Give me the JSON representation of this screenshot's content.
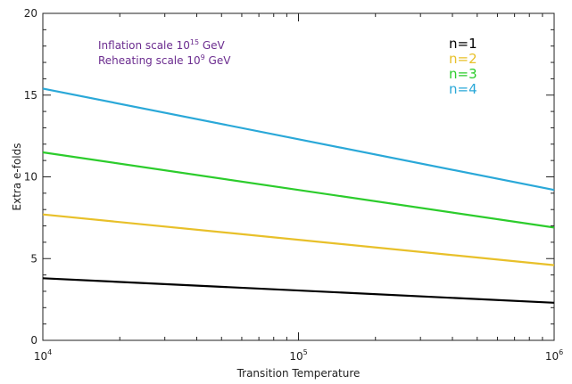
{
  "chart_data": {
    "type": "line",
    "xlabel": "Transition Temperature",
    "ylabel": "Extra e-folds",
    "xscale": "log",
    "xlim": [
      10000,
      1000000
    ],
    "ylim": [
      0,
      20
    ],
    "x_ticks": [
      {
        "value": 10000,
        "base": "10",
        "exp": "4"
      },
      {
        "value": 100000,
        "base": "10",
        "exp": "5"
      },
      {
        "value": 1000000,
        "base": "10",
        "exp": "6"
      }
    ],
    "y_ticks": [
      0,
      5,
      10,
      15,
      20
    ],
    "grid": false,
    "legend_position": "top-right",
    "annotation": {
      "line1": {
        "text": "Inflation scale 10",
        "exp": "15",
        "suffix": " GeV"
      },
      "line2": {
        "text": "Reheating scale 10",
        "exp": "9",
        "suffix": " GeV"
      },
      "color": "#6b2c8f"
    },
    "series": [
      {
        "name": "n=1",
        "color": "#000000",
        "x": [
          10000,
          1000000
        ],
        "y": [
          3.8,
          2.3
        ]
      },
      {
        "name": "n=2",
        "color": "#e8c02a",
        "x": [
          10000,
          1000000
        ],
        "y": [
          7.7,
          4.6
        ]
      },
      {
        "name": "n=3",
        "color": "#2ccc2c",
        "x": [
          10000,
          1000000
        ],
        "y": [
          11.5,
          6.9
        ]
      },
      {
        "name": "n=4",
        "color": "#2aa8d8",
        "x": [
          10000,
          1000000
        ],
        "y": [
          15.4,
          9.2
        ]
      }
    ]
  }
}
